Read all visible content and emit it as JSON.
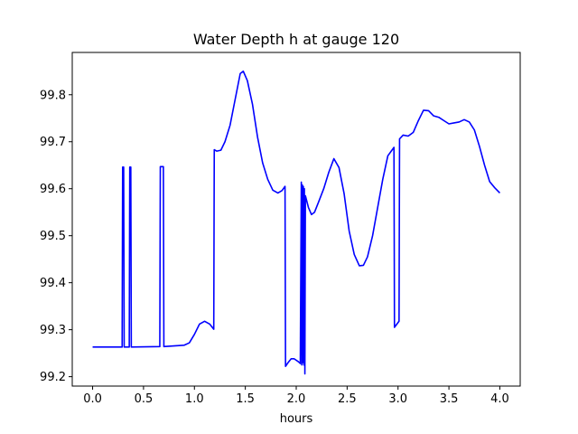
{
  "chart_data": {
    "type": "line",
    "title": "Water Depth h at gauge 120",
    "xlabel": "hours",
    "ylabel": "",
    "xlim": [
      -0.2,
      4.2
    ],
    "ylim": [
      99.18,
      99.89
    ],
    "xticks": [
      0.0,
      0.5,
      1.0,
      1.5,
      2.0,
      2.5,
      3.0,
      3.5,
      4.0
    ],
    "xtick_labels": [
      "0.0",
      "0.5",
      "1.0",
      "1.5",
      "2.0",
      "2.5",
      "3.0",
      "3.5",
      "4.0"
    ],
    "yticks": [
      99.2,
      99.3,
      99.4,
      99.5,
      99.6,
      99.7,
      99.8
    ],
    "ytick_labels": [
      "99.2",
      "99.3",
      "99.4",
      "99.5",
      "99.6",
      "99.7",
      "99.8"
    ],
    "grid": false,
    "series": [
      {
        "color": "#0000ff",
        "points": [
          [
            0.0,
            99.263
          ],
          [
            0.29,
            99.263
          ],
          [
            0.295,
            99.646
          ],
          [
            0.305,
            99.646
          ],
          [
            0.31,
            99.263
          ],
          [
            0.36,
            99.263
          ],
          [
            0.365,
            99.646
          ],
          [
            0.375,
            99.646
          ],
          [
            0.38,
            99.263
          ],
          [
            0.66,
            99.264
          ],
          [
            0.665,
            99.647
          ],
          [
            0.695,
            99.647
          ],
          [
            0.7,
            99.264
          ],
          [
            0.9,
            99.267
          ],
          [
            0.95,
            99.272
          ],
          [
            1.0,
            99.29
          ],
          [
            1.05,
            99.312
          ],
          [
            1.1,
            99.318
          ],
          [
            1.15,
            99.312
          ],
          [
            1.19,
            99.301
          ],
          [
            1.195,
            99.683
          ],
          [
            1.22,
            99.68
          ],
          [
            1.26,
            99.682
          ],
          [
            1.3,
            99.7
          ],
          [
            1.35,
            99.735
          ],
          [
            1.4,
            99.79
          ],
          [
            1.45,
            99.845
          ],
          [
            1.48,
            99.85
          ],
          [
            1.52,
            99.83
          ],
          [
            1.57,
            99.78
          ],
          [
            1.62,
            99.71
          ],
          [
            1.67,
            99.655
          ],
          [
            1.72,
            99.62
          ],
          [
            1.77,
            99.597
          ],
          [
            1.82,
            99.591
          ],
          [
            1.86,
            99.596
          ],
          [
            1.89,
            99.605
          ],
          [
            1.895,
            99.222
          ],
          [
            1.92,
            99.23
          ],
          [
            1.95,
            99.238
          ],
          [
            1.98,
            99.238
          ],
          [
            2.02,
            99.232
          ],
          [
            2.04,
            99.228
          ],
          [
            2.05,
            99.614
          ],
          [
            2.055,
            99.225
          ],
          [
            2.06,
            99.608
          ],
          [
            2.065,
            99.23
          ],
          [
            2.07,
            99.605
          ],
          [
            2.075,
            99.225
          ],
          [
            2.08,
            99.6
          ],
          [
            2.085,
            99.206
          ],
          [
            2.09,
            99.585
          ],
          [
            2.12,
            99.56
          ],
          [
            2.15,
            99.545
          ],
          [
            2.18,
            99.55
          ],
          [
            2.22,
            99.572
          ],
          [
            2.27,
            99.6
          ],
          [
            2.32,
            99.635
          ],
          [
            2.37,
            99.664
          ],
          [
            2.42,
            99.645
          ],
          [
            2.47,
            99.59
          ],
          [
            2.52,
            99.51
          ],
          [
            2.57,
            99.46
          ],
          [
            2.62,
            99.436
          ],
          [
            2.66,
            99.437
          ],
          [
            2.7,
            99.455
          ],
          [
            2.75,
            99.5
          ],
          [
            2.8,
            99.56
          ],
          [
            2.85,
            99.62
          ],
          [
            2.9,
            99.67
          ],
          [
            2.96,
            99.688
          ],
          [
            2.965,
            99.305
          ],
          [
            3.01,
            99.318
          ],
          [
            3.015,
            99.706
          ],
          [
            3.05,
            99.714
          ],
          [
            3.1,
            99.712
          ],
          [
            3.15,
            99.72
          ],
          [
            3.2,
            99.745
          ],
          [
            3.25,
            99.767
          ],
          [
            3.3,
            99.766
          ],
          [
            3.35,
            99.755
          ],
          [
            3.4,
            99.752
          ],
          [
            3.45,
            99.745
          ],
          [
            3.5,
            99.738
          ],
          [
            3.55,
            99.74
          ],
          [
            3.6,
            99.742
          ],
          [
            3.65,
            99.747
          ],
          [
            3.7,
            99.742
          ],
          [
            3.75,
            99.725
          ],
          [
            3.8,
            99.69
          ],
          [
            3.85,
            99.65
          ],
          [
            3.9,
            99.615
          ],
          [
            3.95,
            99.602
          ],
          [
            4.0,
            99.591
          ]
        ]
      }
    ]
  }
}
